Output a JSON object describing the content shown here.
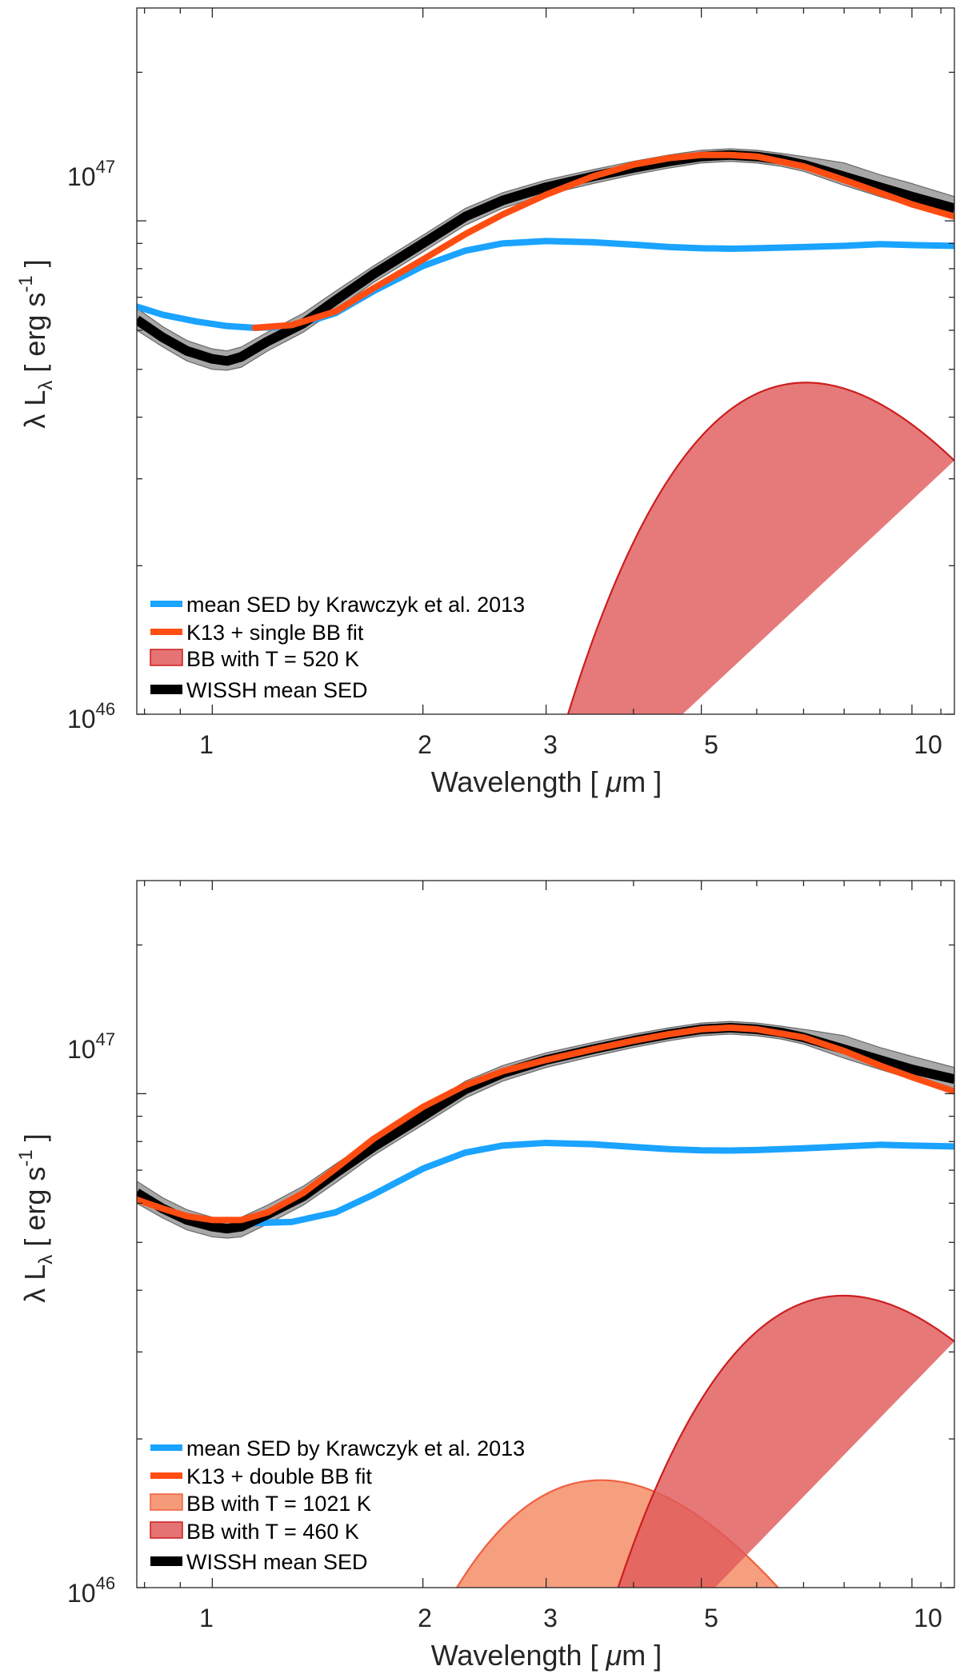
{
  "chart_data": [
    {
      "type": "line",
      "panel": "top",
      "xscale": "log",
      "yscale": "log",
      "xlim": [
        0.78,
        11.5
      ],
      "ylim": [
        1e+46,
        2.7e+47
      ],
      "xlabel_text": "Wavelength [",
      "xlabel_mu": "μ",
      "xlabel_unit": "m ]",
      "ylabel_lambda": "λ L",
      "ylabel_sub": "λ",
      "ylabel_unit": "[ erg s",
      "ylabel_exp": "-1",
      "ylabel_close": "]",
      "xticks": [
        {
          "value": 1,
          "label": "1"
        },
        {
          "value": 2,
          "label": "2"
        },
        {
          "value": 3,
          "label": "3"
        },
        {
          "value": 5,
          "label": "5"
        },
        {
          "value": 10,
          "label": "10"
        }
      ],
      "yticks": [
        {
          "value": 1e+46,
          "base": "10",
          "exp": "46"
        },
        {
          "value": 1e+47,
          "base": "10",
          "exp": "47"
        }
      ],
      "legend": [
        {
          "label": "mean SED by Krawczyk et al. 2013",
          "color": "#1aa3ff",
          "kind": "line"
        },
        {
          "label": "K13 + single BB fit",
          "color": "#ff4d12",
          "kind": "line"
        },
        {
          "label": "BB with T = 520 K",
          "color": "#e57373",
          "kind": "patch"
        },
        {
          "label": "WISSH mean SED",
          "color": "#000000",
          "kind": "line"
        }
      ],
      "series": {
        "wissh": {
          "name": "WISSH mean SED",
          "x": [
            0.78,
            0.85,
            0.92,
            1.0,
            1.05,
            1.1,
            1.2,
            1.35,
            1.5,
            1.7,
            2.0,
            2.3,
            2.6,
            3.0,
            3.5,
            4.0,
            4.5,
            5.0,
            5.5,
            6.0,
            6.5,
            7.0,
            8.0,
            9.0,
            10.0,
            11.5
          ],
          "y": [
            6.3e+46,
            5.8e+46,
            5.45e+46,
            5.25e+46,
            5.2e+46,
            5.3e+46,
            5.7e+46,
            6.2e+46,
            6.9e+46,
            7.8e+46,
            9e+46,
            1.02e+47,
            1.1e+47,
            1.17e+47,
            1.23e+47,
            1.28e+47,
            1.32e+47,
            1.35e+47,
            1.36e+47,
            1.35e+47,
            1.33e+47,
            1.3e+47,
            1.23e+47,
            1.17e+47,
            1.12e+47,
            1.06e+47
          ],
          "band_lower": [
            6e+46,
            5.55e+46,
            5.2e+46,
            5e+46,
            4.98e+46,
            5.05e+46,
            5.45e+46,
            5.95e+46,
            6.6e+46,
            7.5e+46,
            8.65e+46,
            9.8e+46,
            1.06e+47,
            1.13e+47,
            1.19e+47,
            1.24e+47,
            1.28e+47,
            1.31e+47,
            1.32e+47,
            1.31e+47,
            1.29e+47,
            1.26e+47,
            1.18e+47,
            1.12e+47,
            1.07e+47,
            1.01e+47
          ],
          "band_upper": [
            6.65e+46,
            6.1e+46,
            5.72e+46,
            5.5e+46,
            5.45e+46,
            5.55e+46,
            5.95e+46,
            6.5e+46,
            7.2e+46,
            8.1e+46,
            9.35e+46,
            1.06e+47,
            1.14e+47,
            1.21e+47,
            1.27e+47,
            1.32e+47,
            1.36e+47,
            1.39e+47,
            1.4e+47,
            1.39e+47,
            1.37e+47,
            1.35e+47,
            1.31e+47,
            1.24e+47,
            1.19e+47,
            1.12e+47
          ]
        },
        "k13": {
          "name": "mean SED by Krawczyk et al. 2013",
          "x": [
            0.78,
            0.85,
            0.95,
            1.05,
            1.15,
            1.3,
            1.5,
            1.7,
            2.0,
            2.3,
            2.6,
            3.0,
            3.5,
            4.0,
            4.5,
            5.0,
            5.5,
            6.0,
            7.0,
            8.0,
            9.0,
            10.0,
            11.5
          ],
          "y": [
            6.7e+46,
            6.45e+46,
            6.25e+46,
            6.12e+46,
            6.07e+46,
            6.1e+46,
            6.5e+46,
            7.2e+46,
            8.1e+46,
            8.7e+46,
            9e+46,
            9.1e+46,
            9.05e+46,
            8.95e+46,
            8.85e+46,
            8.8e+46,
            8.78e+46,
            8.8e+46,
            8.85e+46,
            8.9e+46,
            8.97e+46,
            8.93e+46,
            8.9e+46
          ]
        },
        "fit": {
          "name": "K13 + single BB fit",
          "x": [
            1.15,
            1.3,
            1.5,
            1.7,
            2.0,
            2.3,
            2.6,
            3.0,
            3.5,
            4.0,
            4.5,
            5.0,
            5.5,
            6.0,
            7.0,
            8.0,
            9.0,
            10.0,
            11.5
          ],
          "y": [
            6.07e+46,
            6.15e+46,
            6.55e+46,
            7.3e+46,
            8.35e+46,
            9.4e+46,
            1.03e+47,
            1.13e+47,
            1.23e+47,
            1.3e+47,
            1.34e+47,
            1.36e+47,
            1.36e+47,
            1.35e+47,
            1.29e+47,
            1.21e+47,
            1.14e+47,
            1.08e+47,
            1.02e+47
          ]
        },
        "bb": [
          {
            "name": "BB with T = 520 K",
            "T": 520,
            "peak": 4.7e+46,
            "color": "#e57373",
            "edge": "#cc1f1f",
            "opacity": 0.95
          }
        ]
      }
    },
    {
      "type": "line",
      "panel": "bottom",
      "xscale": "log",
      "yscale": "log",
      "xlim": [
        0.78,
        11.5
      ],
      "ylim": [
        1e+46,
        2.7e+47
      ],
      "xlabel_text": "Wavelength [",
      "xlabel_mu": "μ",
      "xlabel_unit": "m ]",
      "ylabel_lambda": "λ L",
      "ylabel_sub": "λ",
      "ylabel_unit": "[ erg s",
      "ylabel_exp": "-1",
      "ylabel_close": "]",
      "xticks": [
        {
          "value": 1,
          "label": "1"
        },
        {
          "value": 2,
          "label": "2"
        },
        {
          "value": 3,
          "label": "3"
        },
        {
          "value": 5,
          "label": "5"
        },
        {
          "value": 10,
          "label": "10"
        }
      ],
      "yticks": [
        {
          "value": 1e+46,
          "base": "10",
          "exp": "46"
        },
        {
          "value": 1e+47,
          "base": "10",
          "exp": "47"
        }
      ],
      "legend": [
        {
          "label": "mean SED by Krawczyk et al. 2013",
          "color": "#1aa3ff",
          "kind": "line"
        },
        {
          "label": "K13 + double BB fit",
          "color": "#ff4d12",
          "kind": "line"
        },
        {
          "label": "BB with T = 1021 K",
          "color": "#f59a78",
          "kind": "patch"
        },
        {
          "label": "BB with T = 460 K",
          "color": "#e57373",
          "kind": "patch"
        },
        {
          "label": "WISSH mean SED",
          "color": "#000000",
          "kind": "line"
        }
      ],
      "series": {
        "wissh": {
          "name": "WISSH mean SED",
          "x": [
            0.78,
            0.85,
            0.92,
            1.0,
            1.05,
            1.1,
            1.2,
            1.35,
            1.5,
            1.7,
            2.0,
            2.3,
            2.6,
            3.0,
            3.5,
            4.0,
            4.5,
            5.0,
            5.5,
            6.0,
            6.5,
            7.0,
            8.0,
            9.0,
            10.0,
            11.5
          ],
          "y": [
            6.3e+46,
            5.85e+46,
            5.55e+46,
            5.38e+46,
            5.33e+46,
            5.38e+46,
            5.7e+46,
            6.2e+46,
            6.9e+46,
            7.8e+46,
            9e+46,
            1.02e+47,
            1.1e+47,
            1.17e+47,
            1.23e+47,
            1.28e+47,
            1.32e+47,
            1.35e+47,
            1.36e+47,
            1.35e+47,
            1.33e+47,
            1.3e+47,
            1.23e+47,
            1.17e+47,
            1.12e+47,
            1.07e+47
          ],
          "band_lower": [
            6e+46,
            5.6e+46,
            5.3e+46,
            5.13e+46,
            5.1e+46,
            5.13e+46,
            5.45e+46,
            5.95e+46,
            6.6e+46,
            7.5e+46,
            8.65e+46,
            9.8e+46,
            1.06e+47,
            1.13e+47,
            1.19e+47,
            1.24e+47,
            1.28e+47,
            1.31e+47,
            1.32e+47,
            1.31e+47,
            1.29e+47,
            1.26e+47,
            1.18e+47,
            1.12e+47,
            1.07e+47,
            1.02e+47
          ],
          "band_upper": [
            6.65e+46,
            6.15e+46,
            5.82e+46,
            5.62e+46,
            5.57e+46,
            5.62e+46,
            5.95e+46,
            6.5e+46,
            7.2e+46,
            8.1e+46,
            9.35e+46,
            1.06e+47,
            1.14e+47,
            1.21e+47,
            1.27e+47,
            1.32e+47,
            1.36e+47,
            1.39e+47,
            1.4e+47,
            1.39e+47,
            1.37e+47,
            1.35e+47,
            1.31e+47,
            1.24e+47,
            1.19e+47,
            1.13e+47
          ]
        },
        "k13": {
          "name": "mean SED by Krawczyk et al. 2013",
          "x": [
            1.05,
            1.15,
            1.3,
            1.5,
            1.7,
            2.0,
            2.3,
            2.6,
            3.0,
            3.5,
            4.0,
            4.5,
            5.0,
            5.5,
            6.0,
            7.0,
            8.0,
            9.0,
            10.0,
            11.5
          ],
          "y": [
            5.55e+46,
            5.47e+46,
            5.5e+46,
            5.75e+46,
            6.25e+46,
            7.05e+46,
            7.6e+46,
            7.85e+46,
            7.95e+46,
            7.9e+46,
            7.8e+46,
            7.72e+46,
            7.68e+46,
            7.67e+46,
            7.69e+46,
            7.75e+46,
            7.82e+46,
            7.88e+46,
            7.85e+46,
            7.82e+46
          ]
        },
        "fit": {
          "name": "K13 + double BB fit",
          "x": [
            0.78,
            0.85,
            0.92,
            1.0,
            1.1,
            1.2,
            1.35,
            1.5,
            1.7,
            2.0,
            2.3,
            2.6,
            3.0,
            3.5,
            4.0,
            4.5,
            5.0,
            5.5,
            6.0,
            7.0,
            8.0,
            9.0,
            10.0,
            11.5
          ],
          "y": [
            6.1e+46,
            5.85e+46,
            5.65e+46,
            5.55e+46,
            5.55e+46,
            5.75e+46,
            6.3e+46,
            7.05e+46,
            8.1e+46,
            9.4e+46,
            1.04e+47,
            1.11e+47,
            1.17e+47,
            1.23e+47,
            1.28e+47,
            1.32e+47,
            1.35e+47,
            1.36e+47,
            1.35e+47,
            1.3e+47,
            1.22e+47,
            1.14e+47,
            1.08e+47,
            1.01e+47
          ]
        },
        "bb": [
          {
            "name": "BB with T = 1021 K",
            "T": 1021,
            "peak": 1.65e+46,
            "color": "#f59a78",
            "edge": "#f06040",
            "opacity": 0.95
          },
          {
            "name": "BB with T = 460 K",
            "T": 460,
            "peak": 3.9e+46,
            "color": "#e05a5a",
            "edge": "#cc1f1f",
            "opacity": 0.82
          }
        ]
      }
    }
  ]
}
